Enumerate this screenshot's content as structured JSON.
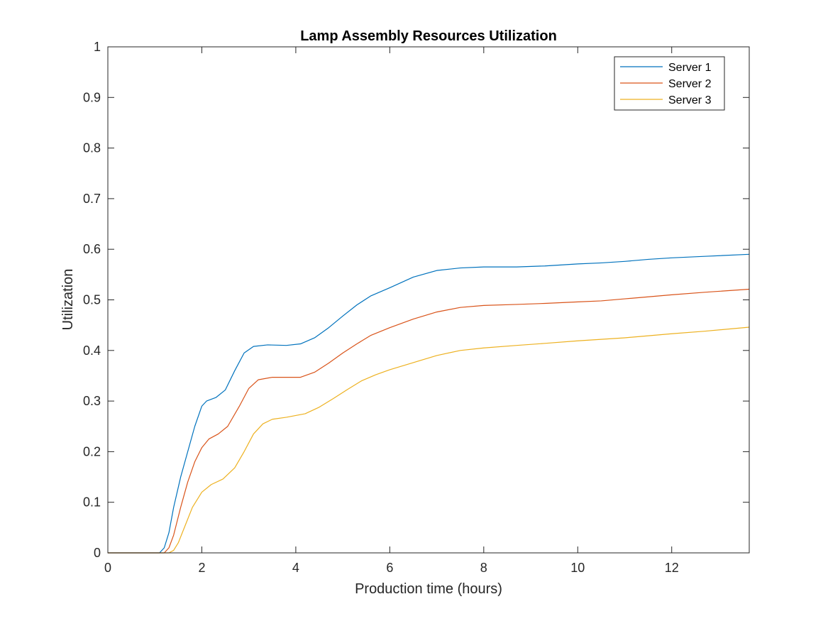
{
  "chart_data": {
    "type": "line",
    "title": "Lamp Assembly Resources Utilization",
    "xlabel": "Production time (hours)",
    "ylabel": "Utilization",
    "xlim": [
      0,
      13.65
    ],
    "ylim": [
      0,
      1
    ],
    "xticks": [
      0,
      2,
      4,
      6,
      8,
      10,
      12
    ],
    "yticks": [
      0,
      0.1,
      0.2,
      0.3,
      0.4,
      0.5,
      0.6,
      0.7,
      0.8,
      0.9,
      1
    ],
    "grid": false,
    "legend_position": "top-right",
    "series": [
      {
        "name": "Server 1",
        "color": "#0072BD",
        "points": [
          [
            0,
            0
          ],
          [
            1.1,
            0
          ],
          [
            1.2,
            0.01
          ],
          [
            1.3,
            0.04
          ],
          [
            1.4,
            0.09
          ],
          [
            1.55,
            0.15
          ],
          [
            1.7,
            0.2
          ],
          [
            1.85,
            0.25
          ],
          [
            2.0,
            0.29
          ],
          [
            2.1,
            0.3
          ],
          [
            2.3,
            0.307
          ],
          [
            2.5,
            0.322
          ],
          [
            2.7,
            0.36
          ],
          [
            2.9,
            0.395
          ],
          [
            3.1,
            0.408
          ],
          [
            3.4,
            0.411
          ],
          [
            3.8,
            0.41
          ],
          [
            4.1,
            0.413
          ],
          [
            4.4,
            0.425
          ],
          [
            4.7,
            0.445
          ],
          [
            5.0,
            0.468
          ],
          [
            5.3,
            0.49
          ],
          [
            5.6,
            0.508
          ],
          [
            6.0,
            0.524
          ],
          [
            6.5,
            0.545
          ],
          [
            7.0,
            0.558
          ],
          [
            7.5,
            0.563
          ],
          [
            8.0,
            0.565
          ],
          [
            8.7,
            0.565
          ],
          [
            9.3,
            0.567
          ],
          [
            10.0,
            0.571
          ],
          [
            10.5,
            0.573
          ],
          [
            11.0,
            0.576
          ],
          [
            11.5,
            0.58
          ],
          [
            12.0,
            0.583
          ],
          [
            12.7,
            0.586
          ],
          [
            13.65,
            0.59
          ]
        ]
      },
      {
        "name": "Server 2",
        "color": "#D95319",
        "points": [
          [
            0,
            0
          ],
          [
            1.2,
            0
          ],
          [
            1.3,
            0.01
          ],
          [
            1.4,
            0.035
          ],
          [
            1.55,
            0.09
          ],
          [
            1.7,
            0.14
          ],
          [
            1.85,
            0.18
          ],
          [
            2.0,
            0.208
          ],
          [
            2.15,
            0.225
          ],
          [
            2.35,
            0.235
          ],
          [
            2.55,
            0.25
          ],
          [
            2.8,
            0.29
          ],
          [
            3.0,
            0.325
          ],
          [
            3.2,
            0.342
          ],
          [
            3.5,
            0.347
          ],
          [
            3.8,
            0.347
          ],
          [
            4.1,
            0.347
          ],
          [
            4.4,
            0.357
          ],
          [
            4.7,
            0.375
          ],
          [
            5.0,
            0.395
          ],
          [
            5.3,
            0.413
          ],
          [
            5.6,
            0.43
          ],
          [
            6.0,
            0.445
          ],
          [
            6.5,
            0.462
          ],
          [
            7.0,
            0.476
          ],
          [
            7.5,
            0.485
          ],
          [
            8.0,
            0.489
          ],
          [
            8.7,
            0.491
          ],
          [
            9.3,
            0.493
          ],
          [
            10.0,
            0.496
          ],
          [
            10.5,
            0.498
          ],
          [
            11.0,
            0.502
          ],
          [
            11.5,
            0.506
          ],
          [
            12.0,
            0.51
          ],
          [
            12.7,
            0.515
          ],
          [
            13.65,
            0.521
          ]
        ]
      },
      {
        "name": "Server 3",
        "color": "#EDB120",
        "points": [
          [
            0,
            0
          ],
          [
            1.3,
            0
          ],
          [
            1.4,
            0.005
          ],
          [
            1.5,
            0.02
          ],
          [
            1.65,
            0.055
          ],
          [
            1.8,
            0.09
          ],
          [
            2.0,
            0.12
          ],
          [
            2.2,
            0.135
          ],
          [
            2.45,
            0.146
          ],
          [
            2.7,
            0.168
          ],
          [
            2.9,
            0.2
          ],
          [
            3.1,
            0.235
          ],
          [
            3.3,
            0.255
          ],
          [
            3.5,
            0.264
          ],
          [
            3.8,
            0.268
          ],
          [
            4.2,
            0.275
          ],
          [
            4.5,
            0.288
          ],
          [
            4.8,
            0.305
          ],
          [
            5.1,
            0.323
          ],
          [
            5.4,
            0.34
          ],
          [
            5.7,
            0.352
          ],
          [
            6.0,
            0.362
          ],
          [
            6.5,
            0.376
          ],
          [
            7.0,
            0.39
          ],
          [
            7.5,
            0.4
          ],
          [
            8.0,
            0.405
          ],
          [
            8.7,
            0.41
          ],
          [
            9.3,
            0.414
          ],
          [
            10.0,
            0.419
          ],
          [
            10.5,
            0.422
          ],
          [
            11.0,
            0.425
          ],
          [
            11.5,
            0.429
          ],
          [
            12.0,
            0.433
          ],
          [
            12.7,
            0.438
          ],
          [
            13.65,
            0.446
          ]
        ]
      }
    ]
  }
}
